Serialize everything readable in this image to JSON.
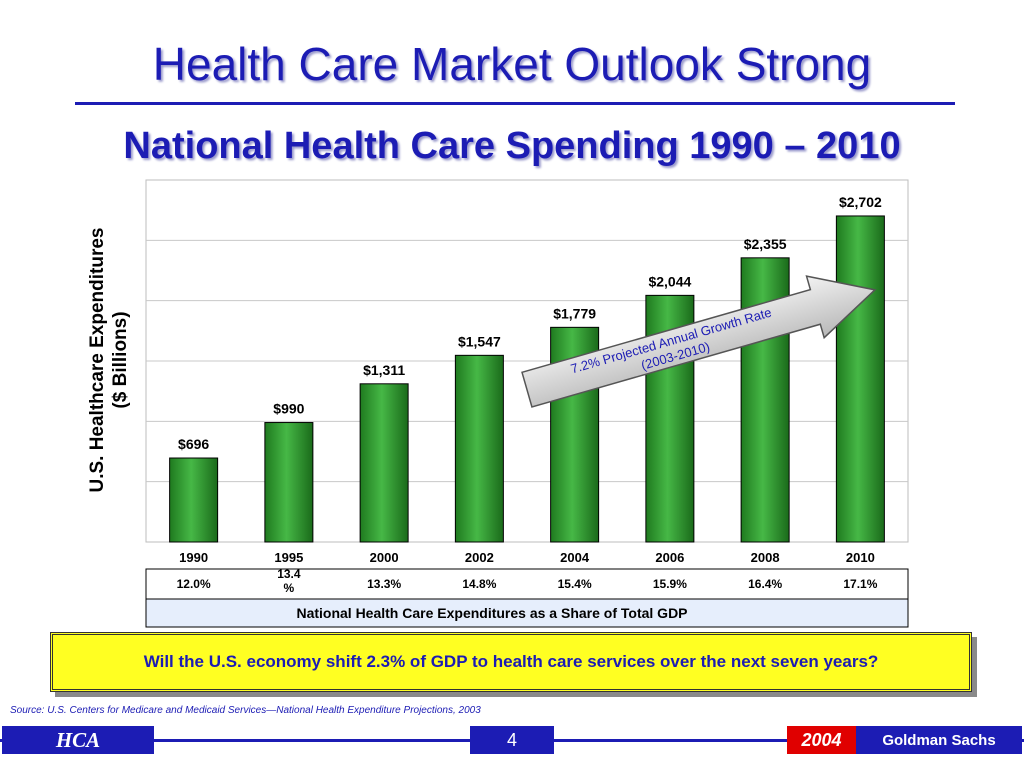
{
  "slide": {
    "title": "Health Care Market Outlook Strong",
    "callout": "Will the U.S. economy shift 2.3% of GDP to health care services over the next seven years?",
    "source": "Source: U.S. Centers for Medicare and Medicaid Services—National Health Expenditure Projections, 2003"
  },
  "footer": {
    "logo": "HCA",
    "page_number": "4",
    "year": "2004",
    "firm": "Goldman Sachs"
  },
  "colors": {
    "title_blue": "#1c1cb4",
    "bar_green": "#3aa83a",
    "callout_yellow": "#ffff22",
    "year_red": "#e00000"
  },
  "chart_data": {
    "type": "bar",
    "title": "National Health Care Spending 1990 – 2010",
    "ylabel_line1": "U.S. Healthcare Expenditures",
    "ylabel_line2": "($ Billions)",
    "categories": [
      "1990",
      "1995",
      "2000",
      "2002",
      "2004",
      "2006",
      "2008",
      "2010"
    ],
    "values": [
      696,
      990,
      1311,
      1547,
      1779,
      2044,
      2355,
      2702
    ],
    "value_labels": [
      "$696",
      "$990",
      "$1,311",
      "$1,547",
      "$1,779",
      "$2,044",
      "$2,355",
      "$2,702"
    ],
    "ylim": [
      0,
      3000
    ],
    "grid": true,
    "gdp_share": [
      "12.0%",
      "13.4\n%",
      "13.3%",
      "14.8%",
      "15.4%",
      "15.9%",
      "16.4%",
      "17.1%"
    ],
    "gdp_table_label": "National Health Care Expenditures as a Share of Total GDP",
    "annotation": {
      "line1": "7.2% Projected Annual Growth Rate",
      "line2": "(2003-2010)"
    }
  }
}
